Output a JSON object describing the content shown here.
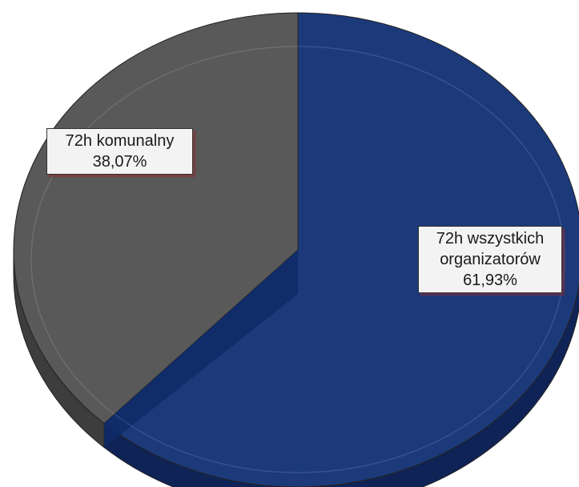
{
  "chart_data": {
    "type": "pie",
    "title": "",
    "slices": [
      {
        "label_lines": [
          "72h wszystkich",
          "organizatorów"
        ],
        "value": 61.93,
        "value_text": "61,93%",
        "color": "#1c3a7a",
        "side_color": "#0f2356"
      },
      {
        "label_lines": [
          "72h komunalny"
        ],
        "value": 38.07,
        "value_text": "38,07%",
        "color": "#595959",
        "side_color": "#3d3d3d"
      }
    ],
    "legend": "none",
    "style": "3d"
  }
}
